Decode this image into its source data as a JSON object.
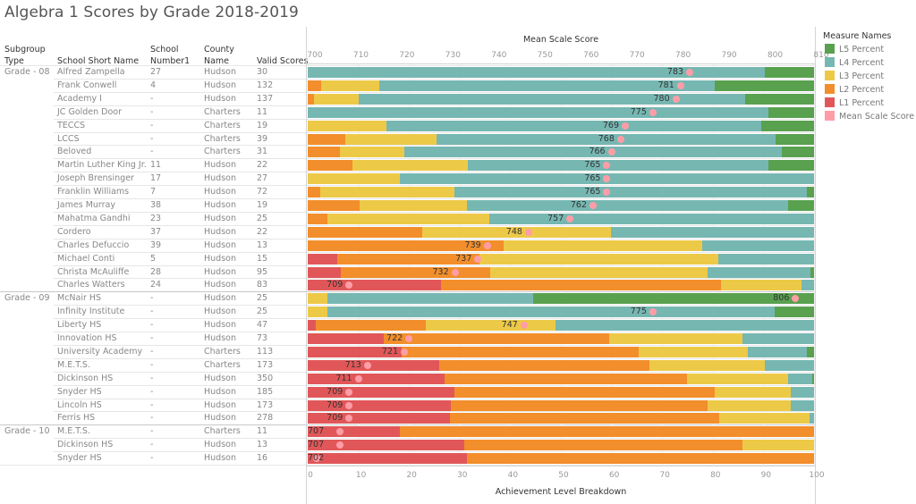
{
  "title": "Algebra 1 Scores by Grade 2018-2019",
  "table_headers": {
    "subgroup_type": [
      "Subgroup",
      "Type"
    ],
    "school_short_name": "School Short Name",
    "school_number": [
      "School",
      "Number1"
    ],
    "county_name": [
      "County",
      "Name"
    ],
    "valid_scores": "Valid Scores"
  },
  "legend": {
    "title": "Measure Names",
    "items": [
      {
        "label": "L5 Percent",
        "color": "#59a14f"
      },
      {
        "label": "L4 Percent",
        "color": "#76b7b2"
      },
      {
        "label": "L3 Percent",
        "color": "#edc948"
      },
      {
        "label": "L2 Percent",
        "color": "#f28e2b"
      },
      {
        "label": "L1 Percent",
        "color": "#e15759"
      },
      {
        "label": "Mean Scale Score",
        "color": "#ff9da7"
      }
    ]
  },
  "chart_data": {
    "type": "bar",
    "orientation": "horizontal-stacked",
    "title": "Algebra 1 Scores by Grade 2018-2019",
    "top_axis": {
      "label": "Mean Scale Score",
      "range": [
        700,
        810
      ],
      "ticks": [
        "700",
        "710",
        "720",
        "730",
        "740",
        "750",
        "760",
        "770",
        "780",
        "790",
        "800",
        "810"
      ]
    },
    "bottom_axis": {
      "label": "Achievement Level Breakdown",
      "range": [
        0,
        100
      ],
      "ticks": [
        "0",
        "10",
        "20",
        "30",
        "40",
        "50",
        "60",
        "70",
        "80",
        "90",
        "100"
      ]
    },
    "series_order": [
      "L1 Percent",
      "L2 Percent",
      "L3 Percent",
      "L4 Percent",
      "L5 Percent"
    ],
    "series_colors": {
      "L1 Percent": "#e15759",
      "L2 Percent": "#f28e2b",
      "L3 Percent": "#edc948",
      "L4 Percent": "#76b7b2",
      "L5 Percent": "#59a14f",
      "Mean Scale Score": "#ff9da7"
    },
    "legend_position": "right",
    "grid": true,
    "rows": [
      {
        "grade": "Grade - 08",
        "school": "Alfred Zampella",
        "number": "27",
        "county": "Hudson",
        "valid": "30",
        "mean": 783,
        "levels": [
          0,
          0,
          0,
          90.3,
          9.7
        ]
      },
      {
        "grade": "Grade - 08",
        "school": "Frank Conwell",
        "number": "4",
        "county": "Hudson",
        "valid": "132",
        "mean": 781,
        "levels": [
          0,
          2.7,
          11.4,
          66.3,
          19.6
        ]
      },
      {
        "grade": "Grade - 08",
        "school": "Academy I",
        "number": "-",
        "county": "Hudson",
        "valid": "137",
        "mean": 780,
        "levels": [
          0,
          1.2,
          8.9,
          76.3,
          13.6
        ]
      },
      {
        "grade": "Grade - 08",
        "school": "JC Golden Door",
        "number": "-",
        "county": "Charters",
        "valid": "11",
        "mean": 775,
        "levels": [
          0,
          0,
          0,
          91.0,
          9.0
        ]
      },
      {
        "grade": "Grade - 08",
        "school": "TECCS",
        "number": "-",
        "county": "Charters",
        "valid": "19",
        "mean": 769,
        "levels": [
          0,
          0,
          15.5,
          74.1,
          10.4
        ]
      },
      {
        "grade": "Grade - 08",
        "school": "LCCS",
        "number": "-",
        "county": "Charters",
        "valid": "39",
        "mean": 768,
        "levels": [
          0,
          7.4,
          18.0,
          67.0,
          7.6
        ]
      },
      {
        "grade": "Grade - 08",
        "school": "Beloved",
        "number": "-",
        "county": "Charters",
        "valid": "31",
        "mean": 766,
        "levels": [
          0,
          6.4,
          12.7,
          74.5,
          6.4
        ]
      },
      {
        "grade": "Grade - 08",
        "school": "Martin Luther King Jr.",
        "number": "11",
        "county": "Hudson",
        "valid": "22",
        "mean": 765,
        "levels": [
          0,
          8.8,
          22.8,
          59.4,
          9.0
        ]
      },
      {
        "grade": "Grade - 08",
        "school": "Joseph Brensinger",
        "number": "17",
        "county": "Hudson",
        "valid": "27",
        "mean": 765,
        "levels": [
          0,
          0,
          18.2,
          81.8,
          0
        ]
      },
      {
        "grade": "Grade - 08",
        "school": "Franklin Williams",
        "number": "7",
        "county": "Hudson",
        "valid": "72",
        "mean": 765,
        "levels": [
          0,
          2.5,
          26.5,
          69.6,
          1.4
        ]
      },
      {
        "grade": "Grade - 08",
        "school": "James Murray",
        "number": "38",
        "county": "Hudson",
        "valid": "19",
        "mean": 762,
        "levels": [
          0,
          10.2,
          21.2,
          63.5,
          5.1
        ]
      },
      {
        "grade": "Grade - 08",
        "school": "Mahatma Gandhi",
        "number": "23",
        "county": "Hudson",
        "valid": "25",
        "mean": 757,
        "levels": [
          0,
          3.9,
          32.0,
          64.1,
          0
        ]
      },
      {
        "grade": "Grade - 08",
        "school": "Cordero",
        "number": "37",
        "county": "Hudson",
        "valid": "22",
        "mean": 748,
        "levels": [
          0,
          22.6,
          37.3,
          40.1,
          0
        ]
      },
      {
        "grade": "Grade - 08",
        "school": "Charles Defuccio",
        "number": "39",
        "county": "Hudson",
        "valid": "13",
        "mean": 739,
        "levels": [
          0,
          38.7,
          39.2,
          22.1,
          0
        ]
      },
      {
        "grade": "Grade - 08",
        "school": "Michael Conti",
        "number": "5",
        "county": "Hudson",
        "valid": "15",
        "mean": 737,
        "levels": [
          5.8,
          28.1,
          47.2,
          18.9,
          0
        ]
      },
      {
        "grade": "Grade - 08",
        "school": "Christa McAuliffe",
        "number": "28",
        "county": "Hudson",
        "valid": "95",
        "mean": 732,
        "levels": [
          6.5,
          29.5,
          43.0,
          20.3,
          0.7
        ]
      },
      {
        "grade": "Grade - 08",
        "school": "Charles Watters",
        "number": "24",
        "county": "Hudson",
        "valid": "83",
        "mean": 709,
        "levels": [
          26.3,
          55.3,
          15.9,
          2.5,
          0
        ]
      },
      {
        "grade": "Grade - 09",
        "school": "McNair HS",
        "number": "-",
        "county": "Hudson",
        "valid": "25",
        "mean": 806,
        "levels": [
          0,
          0,
          3.9,
          40.6,
          55.5
        ]
      },
      {
        "grade": "Grade - 09",
        "school": "Infinity Institute",
        "number": "-",
        "county": "Hudson",
        "valid": "25",
        "mean": 775,
        "levels": [
          0,
          0,
          3.9,
          88.3,
          7.8
        ]
      },
      {
        "grade": "Grade - 09",
        "school": "Liberty HS",
        "number": "-",
        "county": "Hudson",
        "valid": "47",
        "mean": 747,
        "levels": [
          1.6,
          21.7,
          25.6,
          51.1,
          0
        ]
      },
      {
        "grade": "Grade - 09",
        "school": "Innovation HS",
        "number": "-",
        "county": "Hudson",
        "valid": "73",
        "mean": 722,
        "levels": [
          15.0,
          44.5,
          26.4,
          14.1,
          0
        ]
      },
      {
        "grade": "Grade - 09",
        "school": "University Academy",
        "number": "-",
        "county": "Charters",
        "valid": "113",
        "mean": 721,
        "levels": [
          18.6,
          46.8,
          21.6,
          11.6,
          1.4
        ]
      },
      {
        "grade": "Grade - 09",
        "school": "M.E.T.S.",
        "number": "-",
        "county": "Charters",
        "valid": "173",
        "mean": 713,
        "levels": [
          26.0,
          41.5,
          22.8,
          9.7,
          0
        ]
      },
      {
        "grade": "Grade - 09",
        "school": "Dickinson HS",
        "number": "-",
        "county": "Hudson",
        "valid": "350",
        "mean": 711,
        "levels": [
          27.0,
          47.9,
          20.0,
          4.7,
          0.4
        ]
      },
      {
        "grade": "Grade - 09",
        "school": "Snyder HS",
        "number": "-",
        "county": "Hudson",
        "valid": "185",
        "mean": 709,
        "levels": [
          29.0,
          51.4,
          15.0,
          4.6,
          0
        ]
      },
      {
        "grade": "Grade - 09",
        "school": "Lincoln HS",
        "number": "-",
        "county": "Hudson",
        "valid": "173",
        "mean": 709,
        "levels": [
          28.3,
          50.7,
          16.4,
          4.6,
          0
        ]
      },
      {
        "grade": "Grade - 09",
        "school": "Ferris HS",
        "number": "-",
        "county": "Hudson",
        "valid": "278",
        "mean": 709,
        "levels": [
          28.1,
          53.2,
          17.8,
          0.9,
          0
        ]
      },
      {
        "grade": "Grade - 10",
        "school": "M.E.T.S.",
        "number": "-",
        "county": "Charters",
        "valid": "11",
        "mean": 707,
        "levels": [
          18.2,
          81.8,
          0,
          0,
          0
        ]
      },
      {
        "grade": "Grade - 10",
        "school": "Dickinson HS",
        "number": "-",
        "county": "Hudson",
        "valid": "13",
        "mean": 707,
        "levels": [
          30.9,
          55.0,
          14.1,
          0,
          0
        ]
      },
      {
        "grade": "Grade - 10",
        "school": "Snyder HS",
        "number": "-",
        "county": "Hudson",
        "valid": "16",
        "mean": 702,
        "levels": [
          31.4,
          68.6,
          0,
          0,
          0
        ]
      }
    ]
  }
}
